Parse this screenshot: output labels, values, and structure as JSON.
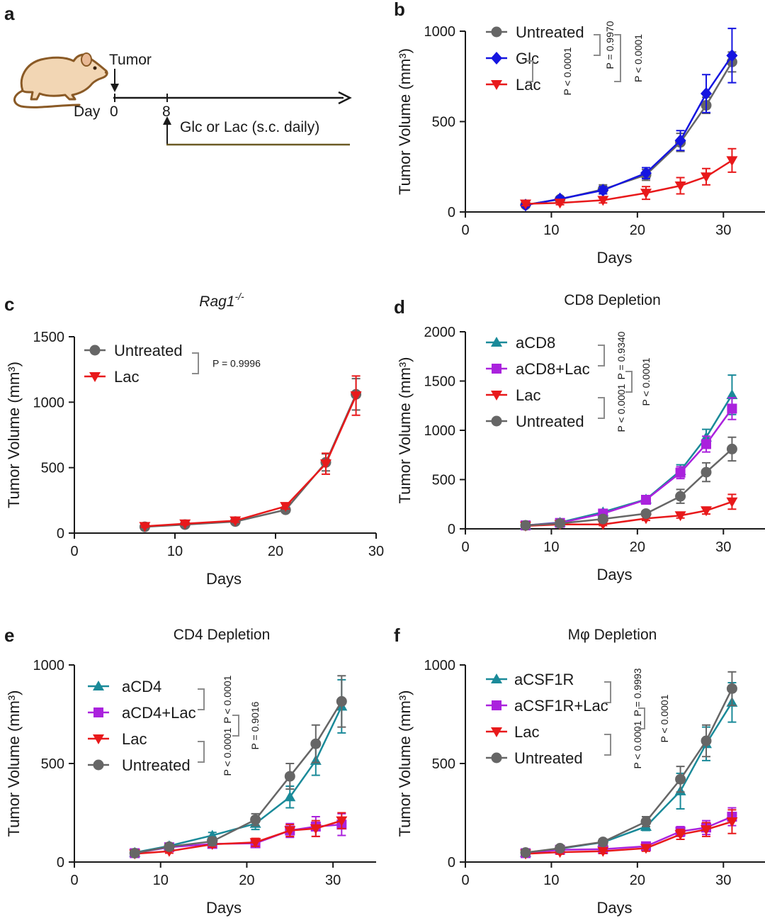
{
  "colors": {
    "untreated": "#666666",
    "glc": "#1515e0",
    "lac": "#e8191b",
    "teal": "#1a8a99",
    "purple": "#aa22dd",
    "bracket": "#8c8c8c",
    "axis": "#1a1a1a",
    "mouse_body": "#f2d6b4",
    "mouse_outline": "#8a5a26"
  },
  "schematic": {
    "letter": "a",
    "tumor_label": "Tumor",
    "day_label": "Day",
    "day0": "0",
    "day8": "8",
    "treatment_label": "Glc or Lac (s.c. daily)",
    "icon": "mouse-icon"
  },
  "chart_data": [
    {
      "id": "b",
      "letter": "b",
      "type": "line",
      "title": "",
      "title_italic": false,
      "xlabel": "Days",
      "ylabel": "Tumor Volume (mm³)",
      "xlim": [
        0,
        35
      ],
      "ylim": [
        0,
        1000
      ],
      "xticks": [
        0,
        10,
        20,
        30
      ],
      "yticks": [
        0,
        500,
        1000
      ],
      "series": [
        {
          "name": "Untreated",
          "color": "#666666",
          "marker": "circle",
          "x": [
            7,
            11,
            16,
            21,
            25,
            28,
            31
          ],
          "y": [
            40,
            70,
            125,
            205,
            385,
            590,
            830
          ],
          "err": [
            12,
            12,
            25,
            30,
            50,
            45,
            55
          ]
        },
        {
          "name": "Glc",
          "color": "#1515e0",
          "marker": "diamond",
          "x": [
            7,
            11,
            16,
            21,
            25,
            28,
            31
          ],
          "y": [
            38,
            72,
            120,
            215,
            395,
            655,
            865
          ],
          "err": [
            10,
            12,
            20,
            30,
            55,
            105,
            150
          ]
        },
        {
          "name": "Lac",
          "color": "#e8191b",
          "marker": "triangle-down",
          "x": [
            7,
            11,
            16,
            21,
            25,
            28,
            31
          ],
          "y": [
            45,
            50,
            65,
            105,
            145,
            195,
            285
          ],
          "err": [
            10,
            10,
            15,
            35,
            45,
            45,
            65
          ]
        }
      ],
      "legend_order": [
        0,
        1,
        2
      ],
      "pvalues": [
        {
          "text": "P < 0.0001",
          "from": 1,
          "to": 2,
          "col": 0
        },
        {
          "text": "P = 0.9970",
          "from": 0,
          "to": 1,
          "col": 1
        },
        {
          "text": "P < 0.0001",
          "from": 0,
          "to": 2,
          "col": 2
        }
      ]
    },
    {
      "id": "c",
      "letter": "c",
      "type": "line",
      "title": "Rag1",
      "title_sup": "-/-",
      "title_italic": true,
      "xlabel": "Days",
      "ylabel": "Tumor Volume (mm³)",
      "xlim": [
        0,
        30
      ],
      "ylim": [
        0,
        1500
      ],
      "xticks": [
        0,
        10,
        20,
        30
      ],
      "yticks": [
        0,
        500,
        1000,
        1500
      ],
      "series": [
        {
          "name": "Untreated",
          "color": "#666666",
          "marker": "circle",
          "x": [
            7,
            11,
            16,
            21,
            25,
            28
          ],
          "y": [
            48,
            65,
            88,
            178,
            540,
            1060
          ],
          "err": [
            8,
            10,
            12,
            20,
            65,
            120
          ]
        },
        {
          "name": "Lac",
          "color": "#e8191b",
          "marker": "triangle-down",
          "x": [
            7,
            11,
            16,
            21,
            25,
            28
          ],
          "y": [
            52,
            72,
            95,
            205,
            530,
            1050
          ],
          "err": [
            8,
            10,
            12,
            20,
            80,
            150
          ]
        }
      ],
      "legend_order": [
        0,
        1
      ],
      "pvalues": [
        {
          "text": "P = 0.9996",
          "from": 0,
          "to": 1,
          "col": 0,
          "horizontal": true
        }
      ]
    },
    {
      "id": "d",
      "letter": "d",
      "type": "line",
      "title": "CD8 Depletion",
      "title_italic": false,
      "xlabel": "Days",
      "ylabel": "Tumor Volume (mm³)",
      "xlim": [
        0,
        35
      ],
      "ylim": [
        0,
        2000
      ],
      "xticks": [
        0,
        10,
        20,
        30
      ],
      "yticks": [
        0,
        500,
        1000,
        1500,
        2000
      ],
      "series": [
        {
          "name": "aCD8",
          "color": "#1a8a99",
          "marker": "triangle-up",
          "x": [
            7,
            11,
            16,
            21,
            25,
            28,
            31
          ],
          "y": [
            35,
            65,
            170,
            300,
            590,
            930,
            1360
          ],
          "err": [
            10,
            12,
            25,
            30,
            60,
            80,
            200
          ]
        },
        {
          "name": "aCD8+Lac",
          "color": "#aa22dd",
          "marker": "square",
          "x": [
            7,
            11,
            16,
            21,
            25,
            28,
            31
          ],
          "y": [
            35,
            60,
            155,
            295,
            570,
            860,
            1220
          ],
          "err": [
            10,
            12,
            25,
            30,
            60,
            80,
            110
          ]
        },
        {
          "name": "Lac",
          "color": "#e8191b",
          "marker": "triangle-down",
          "x": [
            7,
            11,
            16,
            21,
            25,
            28,
            31
          ],
          "y": [
            30,
            45,
            45,
            105,
            135,
            185,
            275
          ],
          "err": [
            8,
            10,
            12,
            20,
            25,
            35,
            75
          ]
        },
        {
          "name": "Untreated",
          "color": "#666666",
          "marker": "circle",
          "x": [
            7,
            11,
            16,
            21,
            25,
            28,
            31
          ],
          "y": [
            35,
            55,
            100,
            155,
            330,
            575,
            810
          ],
          "err": [
            10,
            12,
            20,
            25,
            70,
            95,
            120
          ]
        }
      ],
      "legend_order": [
        0,
        1,
        2,
        3
      ],
      "pvalues": [
        {
          "text": "P = 0.9340",
          "from": 0,
          "to": 1,
          "col": 0
        },
        {
          "text": "P < 0.0001",
          "from": 2,
          "to": 3,
          "col": 0
        },
        {
          "text": "P < 0.0001",
          "from": 1,
          "to": 2,
          "col": 1
        }
      ]
    },
    {
      "id": "e",
      "letter": "e",
      "type": "line",
      "title": "CD4 Depletion",
      "title_italic": false,
      "xlabel": "Days",
      "ylabel": "Tumor Volume (mm³)",
      "xlim": [
        0,
        35
      ],
      "ylim": [
        0,
        1000
      ],
      "xticks": [
        0,
        10,
        20,
        30
      ],
      "yticks": [
        0,
        500,
        1000
      ],
      "series": [
        {
          "name": "aCD4",
          "color": "#1a8a99",
          "marker": "triangle-up",
          "x": [
            7,
            11,
            16,
            21,
            25,
            28,
            31
          ],
          "y": [
            48,
            82,
            135,
            195,
            330,
            515,
            790
          ],
          "err": [
            10,
            12,
            15,
            30,
            55,
            75,
            135
          ]
        },
        {
          "name": "aCD4+Lac",
          "color": "#aa22dd",
          "marker": "square",
          "x": [
            7,
            11,
            16,
            21,
            25,
            28,
            31
          ],
          "y": [
            45,
            75,
            92,
            95,
            160,
            180,
            190
          ],
          "err": [
            10,
            12,
            15,
            20,
            35,
            50,
            55
          ]
        },
        {
          "name": "Lac",
          "color": "#e8191b",
          "marker": "triangle-down",
          "x": [
            7,
            11,
            16,
            21,
            25,
            28,
            31
          ],
          "y": [
            42,
            55,
            90,
            100,
            160,
            170,
            210
          ],
          "err": [
            8,
            10,
            15,
            20,
            30,
            40,
            40
          ]
        },
        {
          "name": "Untreated",
          "color": "#666666",
          "marker": "circle",
          "x": [
            7,
            11,
            16,
            21,
            25,
            28,
            31
          ],
          "y": [
            45,
            78,
            105,
            215,
            435,
            600,
            815
          ],
          "err": [
            10,
            12,
            20,
            30,
            65,
            95,
            130
          ]
        }
      ],
      "legend_order": [
        0,
        1,
        2,
        3
      ],
      "pvalues": [
        {
          "text": "P < 0.0001",
          "from": 0,
          "to": 1,
          "col": 0
        },
        {
          "text": "P < 0.0001",
          "from": 2,
          "to": 3,
          "col": 0
        },
        {
          "text": "P = 0.9016",
          "from": 1,
          "to": 2,
          "col": 1
        }
      ]
    },
    {
      "id": "f",
      "letter": "f",
      "type": "line",
      "title": "Mφ Depletion",
      "title_italic": false,
      "xlabel": "Days",
      "ylabel": "Tumor Volume (mm³)",
      "xlim": [
        0,
        35
      ],
      "ylim": [
        0,
        1000
      ],
      "xticks": [
        0,
        10,
        20,
        30
      ],
      "yticks": [
        0,
        500,
        1000
      ],
      "series": [
        {
          "name": "aCSF1R",
          "color": "#1a8a99",
          "marker": "triangle-up",
          "x": [
            7,
            11,
            16,
            21,
            25,
            28,
            31
          ],
          "y": [
            48,
            68,
            100,
            180,
            360,
            600,
            810
          ],
          "err": [
            10,
            12,
            15,
            20,
            90,
            85,
            100
          ]
        },
        {
          "name": "aCSF1R+Lac",
          "color": "#aa22dd",
          "marker": "square",
          "x": [
            7,
            11,
            16,
            21,
            25,
            28,
            31
          ],
          "y": [
            45,
            62,
            65,
            80,
            155,
            175,
            230
          ],
          "err": [
            8,
            10,
            12,
            15,
            25,
            35,
            45
          ]
        },
        {
          "name": "Lac",
          "color": "#e8191b",
          "marker": "triangle-down",
          "x": [
            7,
            11,
            16,
            21,
            25,
            28,
            31
          ],
          "y": [
            42,
            50,
            55,
            70,
            140,
            165,
            205
          ],
          "err": [
            8,
            10,
            12,
            15,
            25,
            35,
            60
          ]
        },
        {
          "name": "Untreated",
          "color": "#666666",
          "marker": "circle",
          "x": [
            7,
            11,
            16,
            21,
            25,
            28,
            31
          ],
          "y": [
            48,
            70,
            102,
            205,
            420,
            615,
            880
          ],
          "err": [
            10,
            12,
            15,
            25,
            65,
            80,
            85
          ]
        }
      ],
      "legend_order": [
        0,
        1,
        2,
        3
      ],
      "pvalues": [
        {
          "text": "P = 0.9993",
          "from": 0,
          "to": 1,
          "col": 0
        },
        {
          "text": "P < 0.0001",
          "from": 2,
          "to": 3,
          "col": 0
        },
        {
          "text": "P < 0.0001",
          "from": 1,
          "to": 2,
          "col": 1
        }
      ]
    }
  ]
}
